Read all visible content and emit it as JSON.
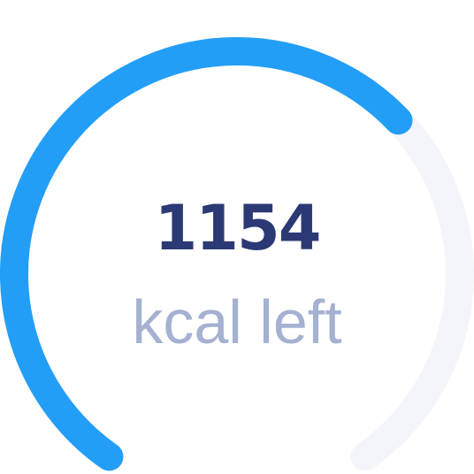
{
  "calorie_gauge": {
    "value": "1154",
    "unit_label": "kcal left",
    "progress_fraction": 0.66,
    "colors": {
      "progress": "#239ef7",
      "track": "#f4f5fa",
      "value_text": "#2b3a75",
      "label_text": "#a4b1d1"
    }
  }
}
